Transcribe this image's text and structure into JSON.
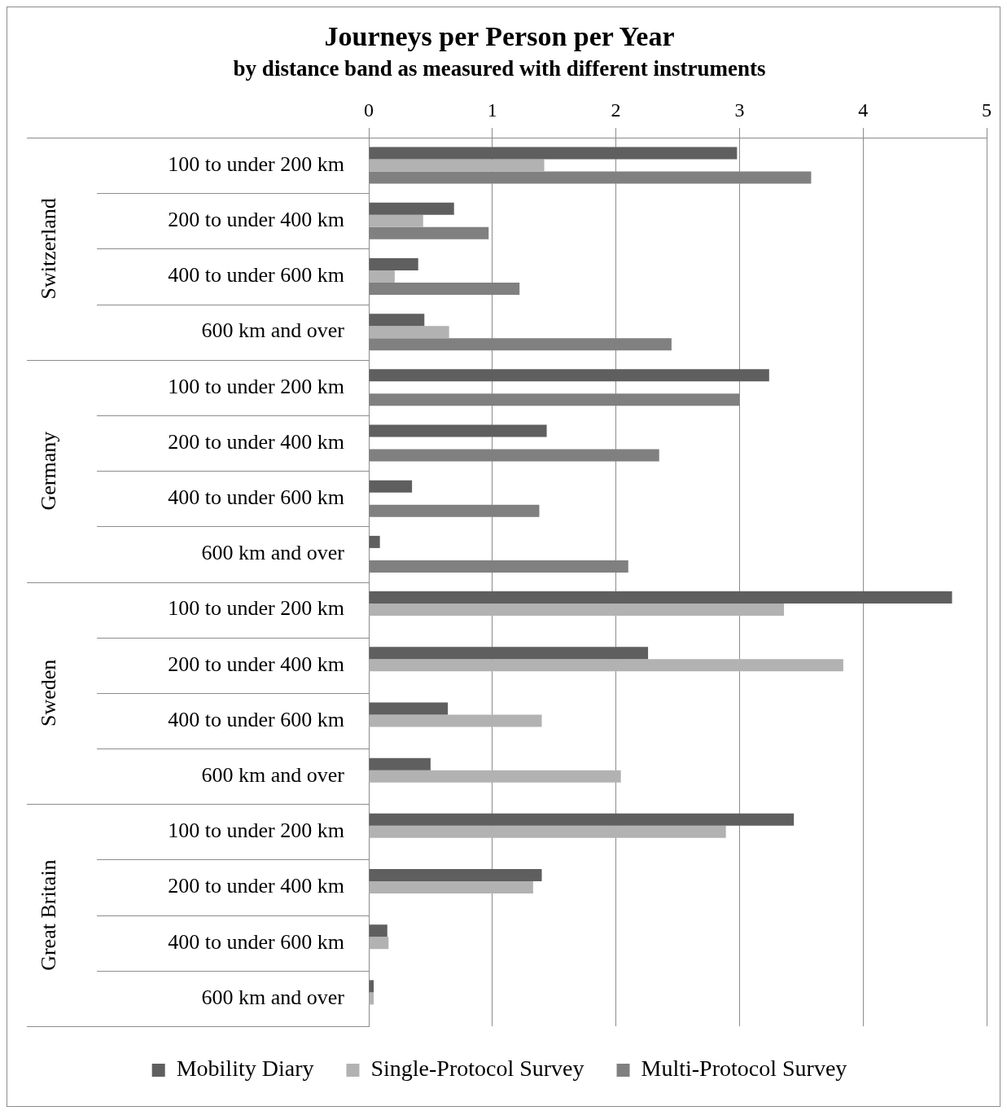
{
  "chart_data": {
    "type": "bar",
    "orientation": "horizontal",
    "title": "Journeys per Person per Year",
    "subtitle": "by distance band as measured with different instruments",
    "categories": [
      "100 to under 200 km",
      "200 to under 400 km",
      "400 to under 600 km",
      "600 km and over",
      "100 to under 200 km",
      "200 to under 400 km",
      "400 to under 600 km",
      "600 km and over",
      "100 to under 200 km",
      "200 to under 400 km",
      "400 to under 600 km",
      "600 km and over",
      "100 to under 200 km",
      "200 to under 400 km",
      "400 to under 600 km",
      "600 km and over"
    ],
    "annotations": [
      "Switzerland",
      "Germany",
      "Sweden",
      "Great Britain"
    ],
    "series": [
      {
        "name": "Mobility Diary",
        "color": "#5f5f5f",
        "values": [
          2.98,
          0.69,
          0.4,
          0.45,
          3.24,
          1.44,
          0.35,
          0.09,
          4.72,
          2.26,
          0.64,
          0.5,
          3.44,
          1.4,
          0.15,
          0.04
        ]
      },
      {
        "name": "Single-Protocol Survey",
        "color": "#b2b2b2",
        "values": [
          1.42,
          0.44,
          0.21,
          0.65,
          null,
          null,
          null,
          null,
          3.36,
          3.84,
          1.4,
          2.04,
          2.89,
          1.33,
          0.16,
          0.04
        ]
      },
      {
        "name": "Multi-Protocol Survey",
        "color": "#808080",
        "values": [
          3.58,
          0.97,
          1.22,
          2.45,
          3.0,
          2.35,
          1.38,
          2.1,
          null,
          null,
          null,
          null,
          null,
          null,
          null,
          null
        ]
      }
    ],
    "xlim": [
      0,
      5
    ],
    "xticks": [
      0,
      1,
      2,
      3,
      4,
      5
    ],
    "grid": "x",
    "legend": "bottom"
  }
}
